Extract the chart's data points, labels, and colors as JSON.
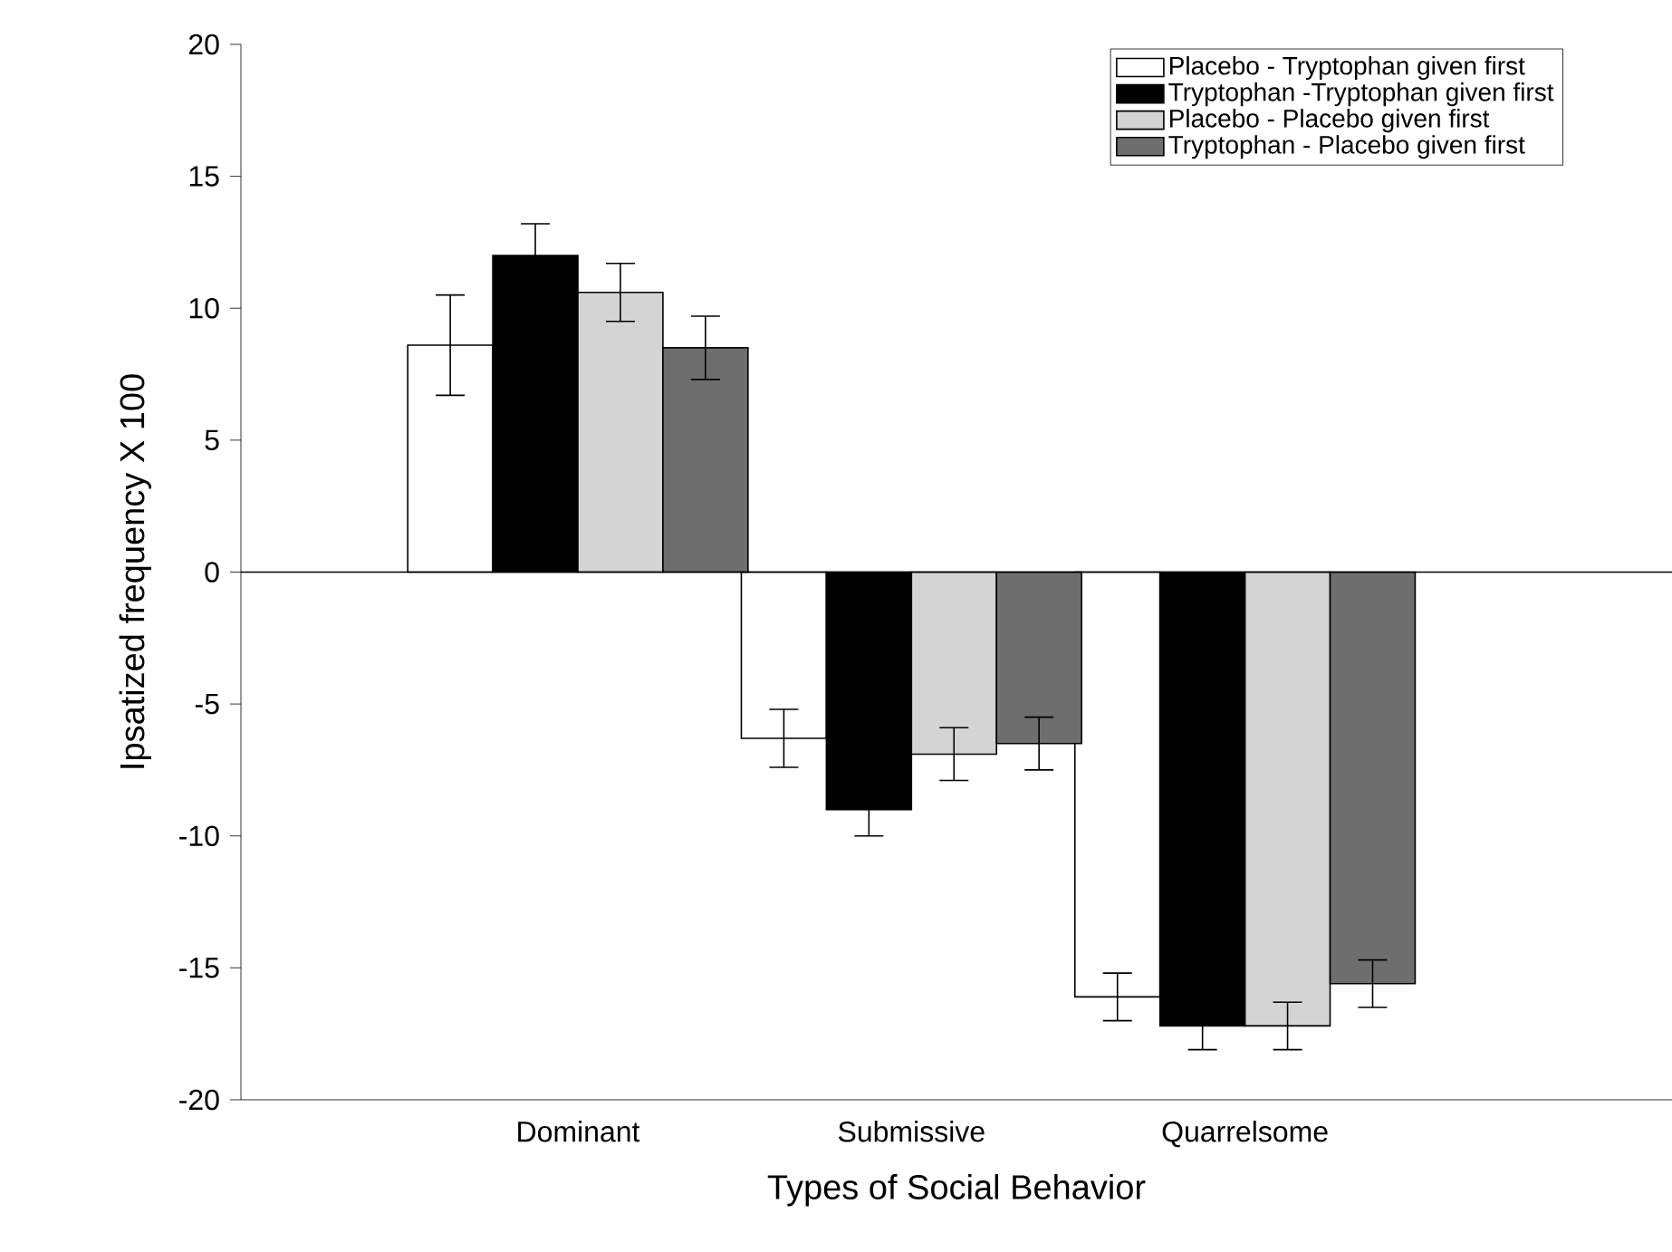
{
  "chart_data": {
    "type": "bar",
    "xlabel": "Types of  Social Behavior",
    "ylabel": "Ipsatized frequency X 100",
    "categories": [
      "Dominant",
      "Submissive",
      "Quarrelsome"
    ],
    "series": [
      {
        "name": "Placebo - Tryptophan given first",
        "color": "#ffffff",
        "values": [
          8.6,
          -6.3,
          -16.1
        ],
        "errors": [
          1.9,
          1.1,
          0.9
        ]
      },
      {
        "name": "Tryptophan -Tryptophan given first",
        "color": "#000000",
        "values": [
          12.0,
          -9.0,
          -17.2
        ],
        "errors": [
          1.2,
          1.0,
          0.9
        ]
      },
      {
        "name": "Placebo - Placebo given first",
        "color": "#d4d4d4",
        "values": [
          10.6,
          -6.9,
          -17.2
        ],
        "errors": [
          1.1,
          1.0,
          0.9
        ]
      },
      {
        "name": "Tryptophan - Placebo given first",
        "color": "#6e6e6e",
        "values": [
          8.5,
          -6.5,
          -15.6
        ],
        "errors": [
          1.2,
          1.0,
          0.9
        ]
      }
    ],
    "ylim": [
      -20,
      20
    ],
    "yticks": [
      -20,
      -15,
      -10,
      -5,
      0,
      5,
      10,
      15,
      20
    ],
    "ref_lines": [
      {
        "axis": "y",
        "value": 0
      }
    ],
    "legend": "top right",
    "grid": false
  }
}
